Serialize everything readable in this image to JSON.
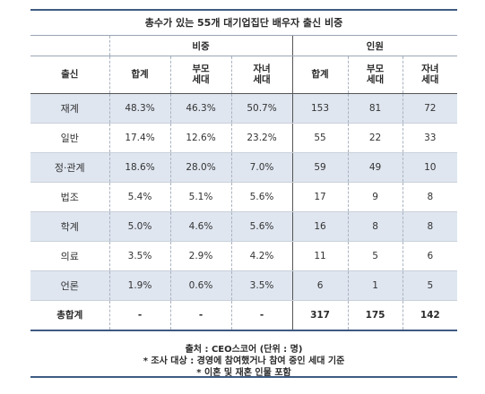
{
  "title": "총수가 있는 55개 대기업집단 배우자 출신 비중",
  "header": {
    "group_ratio": "비중",
    "group_count": "인원",
    "col_origin": "출신",
    "ratio_total": "합계",
    "ratio_parent": "부모\n세대",
    "ratio_child": "자녀\n세대",
    "count_total": "합계",
    "count_parent": "부모\n세대",
    "count_child": "자녀\n세대"
  },
  "rows": [
    {
      "label": "재계",
      "r_total": "48.3%",
      "r_parent": "46.3%",
      "r_child": "50.7%",
      "c_total": "153",
      "c_parent": "81",
      "c_child": "72"
    },
    {
      "label": "일반",
      "r_total": "17.4%",
      "r_parent": "12.6%",
      "r_child": "23.2%",
      "c_total": "55",
      "c_parent": "22",
      "c_child": "33"
    },
    {
      "label": "정·관계",
      "r_total": "18.6%",
      "r_parent": "28.0%",
      "r_child": "7.0%",
      "c_total": "59",
      "c_parent": "49",
      "c_child": "10"
    },
    {
      "label": "법조",
      "r_total": "5.4%",
      "r_parent": "5.1%",
      "r_child": "5.6%",
      "c_total": "17",
      "c_parent": "9",
      "c_child": "8"
    },
    {
      "label": "학계",
      "r_total": "5.0%",
      "r_parent": "4.6%",
      "r_child": "5.6%",
      "c_total": "16",
      "c_parent": "8",
      "c_child": "8"
    },
    {
      "label": "의료",
      "r_total": "3.5%",
      "r_parent": "2.9%",
      "r_child": "4.2%",
      "c_total": "11",
      "c_parent": "5",
      "c_child": "6"
    },
    {
      "label": "언론",
      "r_total": "1.9%",
      "r_parent": "0.6%",
      "r_child": "3.5%",
      "c_total": "6",
      "c_parent": "1",
      "c_child": "5"
    }
  ],
  "total": {
    "label": "총합계",
    "r_total": "-",
    "r_parent": "-",
    "r_child": "-",
    "c_total": "317",
    "c_parent": "175",
    "c_child": "142"
  },
  "notes": {
    "source": "출처 : CEO스코어 (단위 : 명)",
    "note1": "* 조사 대상 : 경영에 참여했거나 참여 중인 세대 기준",
    "note2": "* 이혼 및 재혼 인물 포함"
  }
}
